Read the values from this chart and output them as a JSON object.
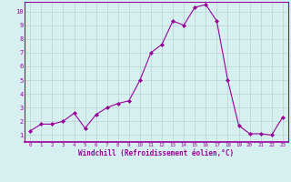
{
  "x": [
    0,
    1,
    2,
    3,
    4,
    5,
    6,
    7,
    8,
    9,
    10,
    11,
    12,
    13,
    14,
    15,
    16,
    17,
    18,
    19,
    20,
    21,
    22,
    23
  ],
  "y": [
    1.3,
    1.8,
    1.8,
    2.0,
    2.6,
    1.5,
    2.5,
    3.0,
    3.3,
    3.5,
    5.0,
    7.0,
    7.6,
    9.3,
    9.0,
    10.3,
    10.5,
    9.3,
    5.0,
    1.7,
    1.1,
    1.1,
    1.0,
    2.3
  ],
  "line_color": "#990099",
  "marker": "D",
  "marker_size": 2.0,
  "bg_color": "#d6f0f0",
  "grid_color": "#b8d4d4",
  "xlabel": "Windchill (Refroidissement éolien,°C)",
  "xlabel_color": "#990099",
  "tick_color": "#990099",
  "xlim": [
    -0.5,
    23.5
  ],
  "ylim": [
    0.5,
    10.7
  ],
  "yticks": [
    1,
    2,
    3,
    4,
    5,
    6,
    7,
    8,
    9,
    10
  ],
  "xticks": [
    0,
    1,
    2,
    3,
    4,
    5,
    6,
    7,
    8,
    9,
    10,
    11,
    12,
    13,
    14,
    15,
    16,
    17,
    18,
    19,
    20,
    21,
    22,
    23
  ]
}
